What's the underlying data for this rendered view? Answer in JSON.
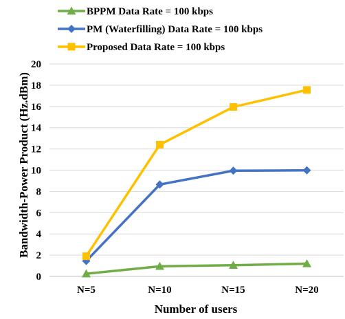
{
  "chart_data": {
    "type": "line",
    "categories": [
      "N=5",
      "N=10",
      "N=15",
      "N=20"
    ],
    "series": [
      {
        "name": "BPPM Data Rate = 100 kbps",
        "color": "#70ad47",
        "marker": "triangle",
        "values": [
          0.25,
          0.95,
          1.05,
          1.2
        ]
      },
      {
        "name": "PM (Waterfilling) Data Rate = 100 kbps",
        "color": "#4472c4",
        "marker": "diamond",
        "values": [
          1.45,
          8.65,
          9.95,
          9.98
        ]
      },
      {
        "name": "Proposed Data Rate = 100 kbps",
        "color": "#ffc000",
        "marker": "square",
        "values": [
          1.9,
          12.4,
          15.95,
          17.55
        ]
      }
    ],
    "xlabel": "Number of users",
    "ylabel": "Bandwidth-Power Product (Hz.dBm)",
    "ylim": [
      0,
      20
    ],
    "yticks": [
      0,
      2,
      4,
      6,
      8,
      10,
      12,
      14,
      16,
      18,
      20
    ],
    "grid": "horizontal",
    "legend_position": "top"
  }
}
